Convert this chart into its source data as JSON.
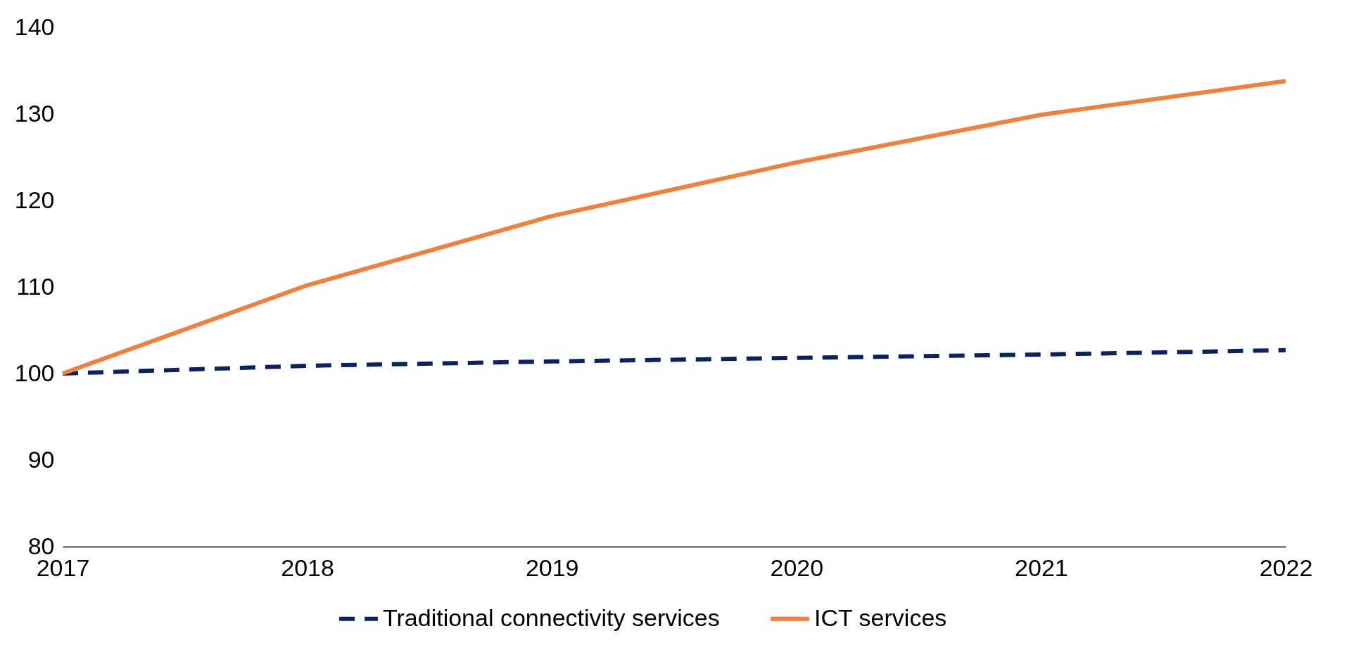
{
  "chart_data": {
    "type": "line",
    "x": [
      2017,
      2018,
      2019,
      2020,
      2021,
      2022
    ],
    "xlim": [
      2017,
      2022
    ],
    "xticks": [
      2017,
      2018,
      2019,
      2020,
      2021,
      2022
    ],
    "ylim": [
      80,
      140
    ],
    "yticks": [
      80,
      90,
      100,
      110,
      120,
      130,
      140
    ],
    "grid": false,
    "legend": "bottom",
    "series": [
      {
        "name": "Traditional connectivity services",
        "color": "#0b2260",
        "line_style": "dashed",
        "values": [
          100,
          100.9,
          101.4,
          101.8,
          102.2,
          102.7
        ]
      },
      {
        "name": "ICT services",
        "color": "#f0803a",
        "line_style": "solid",
        "values": [
          100,
          110.2,
          118.2,
          124.4,
          129.9,
          133.8
        ]
      }
    ]
  }
}
